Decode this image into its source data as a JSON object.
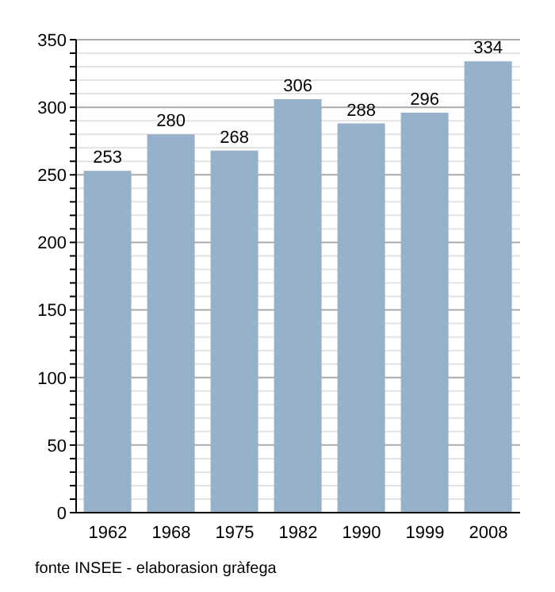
{
  "chart_data": {
    "type": "bar",
    "categories": [
      "1962",
      "1968",
      "1975",
      "1982",
      "1990",
      "1999",
      "2008"
    ],
    "values": [
      253,
      280,
      268,
      306,
      288,
      296,
      334
    ],
    "color": "#97b0cb",
    "data_labels": true,
    "grid": "y",
    "ylim": [
      0,
      350
    ],
    "yticks": [
      0,
      {
        "value": 10,
        "label": null
      },
      {
        "value": 20,
        "label": null
      },
      {
        "value": 30,
        "label": null
      },
      {
        "value": 40,
        "label": null
      },
      50,
      {
        "value": 60,
        "label": null
      },
      {
        "value": 70,
        "label": null
      },
      {
        "value": 80,
        "label": null
      },
      {
        "value": 90,
        "label": null
      },
      100,
      {
        "value": 110,
        "label": null
      },
      {
        "value": 120,
        "label": null
      },
      {
        "value": 130,
        "label": null
      },
      {
        "value": 140,
        "label": null
      },
      150,
      {
        "value": 160,
        "label": null
      },
      {
        "value": 170,
        "label": null
      },
      {
        "value": 180,
        "label": null
      },
      {
        "value": 190,
        "label": null
      },
      200,
      {
        "value": 210,
        "label": null
      },
      {
        "value": 220,
        "label": null
      },
      {
        "value": 230,
        "label": null
      },
      {
        "value": 240,
        "label": null
      },
      250,
      {
        "value": 260,
        "label": null
      },
      {
        "value": 270,
        "label": null
      },
      {
        "value": 280,
        "label": null
      },
      {
        "value": 290,
        "label": null
      },
      300,
      {
        "value": 310,
        "label": null
      },
      {
        "value": 320,
        "label": null
      },
      {
        "value": 330,
        "label": null
      },
      {
        "value": 340,
        "label": null
      },
      350
    ],
    "annotations": [
      "fonte INSEE - elaborasion gràfega"
    ]
  }
}
